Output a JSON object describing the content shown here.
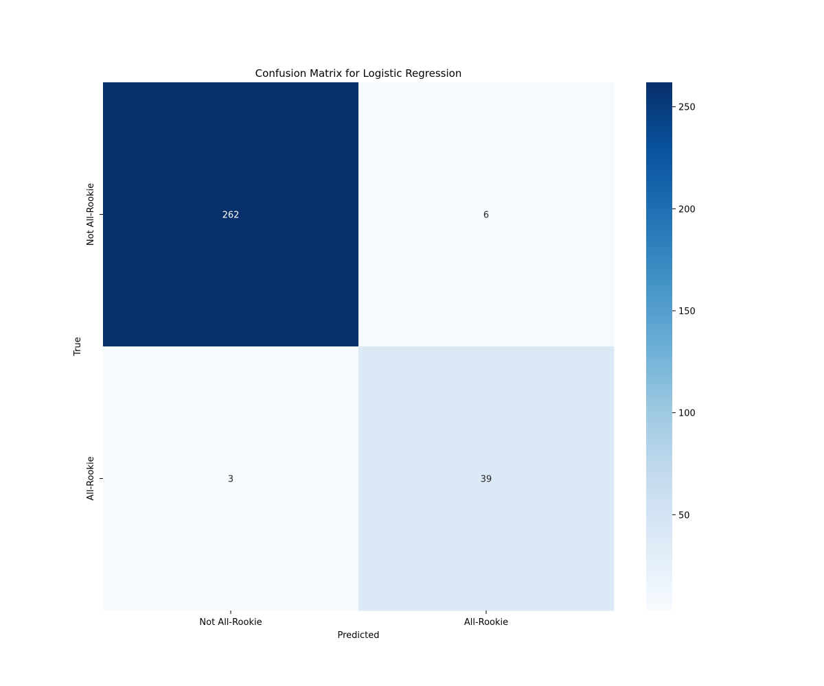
{
  "chart_data": {
    "type": "heatmap",
    "title": "Confusion Matrix for Logistic Regression",
    "xlabel": "Predicted",
    "ylabel": "True",
    "x_categories": [
      "Not All-Rookie",
      "All-Rookie"
    ],
    "y_categories": [
      "Not All-Rookie",
      "All-Rookie"
    ],
    "values": [
      [
        262,
        6
      ],
      [
        3,
        39
      ]
    ],
    "colormap": "Blues",
    "color_range": [
      3,
      262
    ],
    "colorbar_ticks": [
      50,
      100,
      150,
      200,
      250
    ],
    "colors": {
      "low": "#f7fbff",
      "high": "#08306b",
      "text_on_dark": "#ffffff",
      "text_on_light": "#262626"
    }
  }
}
